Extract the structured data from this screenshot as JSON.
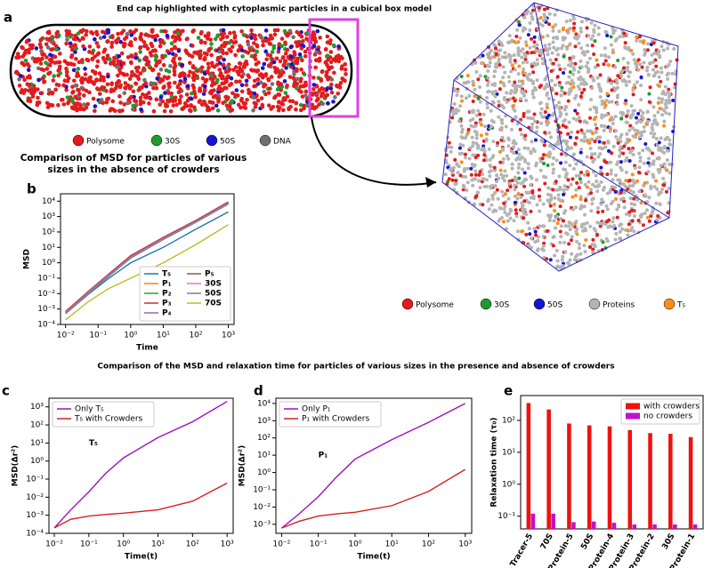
{
  "figure": {
    "label": "a",
    "title": "End cap highlighted with cytoplasmic particles in a cubical box model",
    "legend_left": [
      {
        "name": "Polysome",
        "color": "#e41a1c"
      },
      {
        "name": "30S",
        "color": "#1f9a2f"
      },
      {
        "name": "50S",
        "color": "#1414d4"
      },
      {
        "name": "DNA",
        "color": "#707070"
      }
    ],
    "legend_right": [
      {
        "name": "Polysome",
        "color": "#e41a1c"
      },
      {
        "name": "30S",
        "color": "#1f9a2f"
      },
      {
        "name": "50S",
        "color": "#1414d4"
      },
      {
        "name": "Proteins",
        "color": "#b4b4b4"
      },
      {
        "name": "T₅",
        "color": "#ff8c1a"
      }
    ],
    "section_title": "Comparison of the MSD and relaxation time for particles of various sizes in the presence and absence of crowders"
  },
  "chart_data": [
    {
      "type": "line",
      "label": "b",
      "title": "Comparison of MSD for particles of various sizes in the absence of crowders",
      "xlabel": "Time",
      "ylabel": "MSD",
      "xscale": "log",
      "yscale": "log",
      "x": [
        0.01,
        0.05,
        0.2,
        1,
        10,
        100,
        1000
      ],
      "xlim": [
        0.007,
        1500
      ],
      "ylim": [
        0.0001,
        30000
      ],
      "xticks": [
        {
          "value": 0.01,
          "label": "10⁻²"
        },
        {
          "value": 0.1,
          "label": "10⁻¹"
        },
        {
          "value": 1,
          "label": "10⁰"
        },
        {
          "value": 10,
          "label": "10¹"
        },
        {
          "value": 100,
          "label": "10²"
        },
        {
          "value": 1000,
          "label": "10³"
        }
      ],
      "yticks": [
        {
          "value": 0.0001,
          "label": "10⁻⁴"
        },
        {
          "value": 0.001,
          "label": "10⁻³"
        },
        {
          "value": 0.01,
          "label": "10⁻²"
        },
        {
          "value": 0.1,
          "label": "10⁻¹"
        },
        {
          "value": 1,
          "label": "10⁰"
        },
        {
          "value": 10,
          "label": "10¹"
        },
        {
          "value": 100,
          "label": "10²"
        },
        {
          "value": 1000,
          "label": "10³"
        },
        {
          "value": 10000,
          "label": "10⁴"
        }
      ],
      "legend": "lower right",
      "legend_columns": 2,
      "series": [
        {
          "name": "T₅",
          "color": "#1f77b4",
          "values": [
            0.0005,
            0.009,
            0.09,
            1,
            10,
            150,
            2000
          ]
        },
        {
          "name": "P₁",
          "color": "#ff7f0e",
          "values": [
            0.0006,
            0.012,
            0.15,
            2.5,
            40,
            500,
            8000
          ]
        },
        {
          "name": "P₂",
          "color": "#2ca02c",
          "values": [
            0.00065,
            0.013,
            0.16,
            2.7,
            42,
            520,
            8500
          ]
        },
        {
          "name": "P₃",
          "color": "#d62728",
          "values": [
            0.0007,
            0.014,
            0.17,
            2.9,
            45,
            560,
            9000
          ]
        },
        {
          "name": "P₄",
          "color": "#9467bd",
          "values": [
            0.00062,
            0.0125,
            0.155,
            2.6,
            41,
            510,
            8200
          ]
        },
        {
          "name": "P₅",
          "color": "#8c564b",
          "values": [
            0.0006,
            0.0115,
            0.14,
            2.4,
            38,
            480,
            7600
          ]
        },
        {
          "name": "30S",
          "color": "#e377c2",
          "values": [
            0.00055,
            0.011,
            0.13,
            2.2,
            35,
            450,
            7000
          ]
        },
        {
          "name": "50S",
          "color": "#7f7f7f",
          "values": [
            0.0005,
            0.01,
            0.12,
            2,
            32,
            420,
            6500
          ]
        },
        {
          "name": "70S",
          "color": "#bcbd22",
          "values": [
            0.0002,
            0.003,
            0.02,
            0.1,
            1,
            15,
            300
          ]
        }
      ]
    },
    {
      "type": "line",
      "label": "c",
      "xlabel": "Time(t)",
      "ylabel": "MSD(Δr²)",
      "xscale": "log",
      "yscale": "log",
      "x": [
        0.01,
        0.03,
        0.1,
        0.3,
        1,
        10,
        100,
        1000
      ],
      "xlim": [
        0.007,
        1500
      ],
      "ylim": [
        0.0001,
        3000
      ],
      "xticks": [
        {
          "value": 0.01,
          "label": "10⁻²"
        },
        {
          "value": 0.1,
          "label": "10⁻¹"
        },
        {
          "value": 1,
          "label": "10⁰"
        },
        {
          "value": 10,
          "label": "10¹"
        },
        {
          "value": 100,
          "label": "10²"
        },
        {
          "value": 1000,
          "label": "10³"
        }
      ],
      "yticks": [
        {
          "value": 0.0001,
          "label": "10⁻⁴"
        },
        {
          "value": 0.001,
          "label": "10⁻³"
        },
        {
          "value": 0.01,
          "label": "10⁻²"
        },
        {
          "value": 0.1,
          "label": "10⁻¹"
        },
        {
          "value": 1,
          "label": "10⁰"
        },
        {
          "value": 10,
          "label": "10¹"
        },
        {
          "value": 100,
          "label": "10²"
        },
        {
          "value": 1000,
          "label": "10³"
        }
      ],
      "legend": "upper left",
      "legend_columns": 1,
      "annotation": {
        "text": "T₅",
        "color": "#d020d0",
        "x": 0.1,
        "y": 10
      },
      "series": [
        {
          "name": "Only T₅",
          "color": "#a010c0",
          "values": [
            0.0002,
            0.002,
            0.02,
            0.2,
            1.5,
            20,
            150,
            2000
          ]
        },
        {
          "name": "T₅ with Crowders",
          "color": "#d62020",
          "values": [
            0.0002,
            0.0006,
            0.0009,
            0.0011,
            0.0013,
            0.002,
            0.006,
            0.06
          ]
        }
      ]
    },
    {
      "type": "line",
      "label": "d",
      "xlabel": "Time(t)",
      "ylabel": "MSD(Δr²)",
      "xscale": "log",
      "yscale": "log",
      "x": [
        0.01,
        0.03,
        0.1,
        0.3,
        1,
        10,
        100,
        1000
      ],
      "xlim": [
        0.007,
        1500
      ],
      "ylim": [
        0.0003,
        20000
      ],
      "xticks": [
        {
          "value": 0.01,
          "label": "10⁻²"
        },
        {
          "value": 0.1,
          "label": "10⁻¹"
        },
        {
          "value": 1,
          "label": "10⁰"
        },
        {
          "value": 10,
          "label": "10¹"
        },
        {
          "value": 100,
          "label": "10²"
        },
        {
          "value": 1000,
          "label": "10³"
        }
      ],
      "yticks": [
        {
          "value": 0.001,
          "label": "10⁻³"
        },
        {
          "value": 0.01,
          "label": "10⁻²"
        },
        {
          "value": 0.1,
          "label": "10⁻¹"
        },
        {
          "value": 1,
          "label": "10⁰"
        },
        {
          "value": 10,
          "label": "10¹"
        },
        {
          "value": 100,
          "label": "10²"
        },
        {
          "value": 1000,
          "label": "10³"
        },
        {
          "value": 10000,
          "label": "10⁴"
        }
      ],
      "legend": "upper left",
      "legend_columns": 1,
      "annotation": {
        "text": "P₁",
        "color": "#d020d0",
        "x": 0.1,
        "y": 10
      },
      "series": [
        {
          "name": "Only P₁",
          "color": "#a010c0",
          "values": [
            0.0006,
            0.004,
            0.04,
            0.5,
            6,
            80,
            800,
            10000
          ]
        },
        {
          "name": "P₁ with Crowders",
          "color": "#d62020",
          "values": [
            0.0006,
            0.0015,
            0.003,
            0.004,
            0.005,
            0.012,
            0.08,
            1.5
          ]
        }
      ]
    },
    {
      "type": "bar",
      "label": "e",
      "ylabel": "Relaxation time (τ₀)",
      "yscale": "log",
      "categories": [
        "Tracer-5",
        "70S",
        "Protein-5",
        "50S",
        "Protein-4",
        "Protein-3",
        "Protein-2",
        "30S",
        "Protein-1"
      ],
      "ylim": [
        0.04,
        600
      ],
      "yticks": [
        {
          "value": 0.1,
          "label": "10⁻¹"
        },
        {
          "value": 1,
          "label": "10⁰"
        },
        {
          "value": 10,
          "label": "10¹"
        },
        {
          "value": 100,
          "label": "10²"
        }
      ],
      "legend": "upper right",
      "legend_columns": 1,
      "series": [
        {
          "name": "with crowders",
          "color": "#ee1111",
          "values": [
            350,
            220,
            80,
            70,
            65,
            50,
            40,
            38,
            30
          ]
        },
        {
          "name": "no crowders",
          "color": "#c010d0",
          "values": [
            0.12,
            0.12,
            0.065,
            0.068,
            0.062,
            0.055,
            0.055,
            0.055,
            0.055
          ]
        }
      ]
    }
  ]
}
